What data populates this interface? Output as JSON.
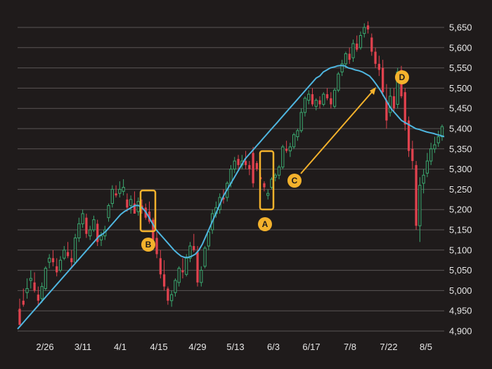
{
  "chart_data": {
    "type": "candlestick",
    "title": "",
    "xlabel": "",
    "ylabel": "",
    "ylim": [
      4900,
      5650
    ],
    "y_ticks": [
      "4,900",
      "4,950",
      "5,000",
      "5,050",
      "5,100",
      "5,150",
      "5,200",
      "5,250",
      "5,300",
      "5,350",
      "5,400",
      "5,450",
      "5,500",
      "5,550",
      "5,600",
      "5,650"
    ],
    "x_tick_labels": [
      "2/26",
      "3/11",
      "4/1",
      "4/15",
      "4/29",
      "5/13",
      "6/3",
      "6/17",
      "7/8",
      "7/22",
      "8/5"
    ],
    "grid": "horizontal",
    "colors": {
      "up": "#3ba870",
      "down": "#e0424e",
      "ma": "#4fb6e0",
      "annotation": "#f4b22c",
      "grid": "#5a5555",
      "background": "#1f1b1b"
    },
    "series": [
      {
        "values": [
          [
            4955,
            4980,
            4945,
            4915
          ],
          [
            4975,
            5005,
            4960,
            4965
          ],
          [
            4995,
            5030,
            4980,
            5005
          ],
          [
            5025,
            5050,
            5005,
            5030
          ],
          [
            5020,
            5045,
            4995,
            5000
          ],
          [
            4990,
            5010,
            4965,
            4975
          ],
          [
            4980,
            5020,
            4970,
            5010
          ],
          [
            5005,
            5060,
            5000,
            5055
          ],
          [
            5070,
            5090,
            5055,
            5080
          ],
          [
            5080,
            5100,
            5060,
            5070
          ],
          [
            5060,
            5080,
            5035,
            5045
          ],
          [
            5050,
            5085,
            5045,
            5075
          ],
          [
            5080,
            5110,
            5075,
            5100
          ],
          [
            5095,
            5120,
            5080,
            5085
          ],
          [
            5080,
            5100,
            5055,
            5070
          ],
          [
            5070,
            5140,
            5065,
            5130
          ],
          [
            5130,
            5180,
            5120,
            5165
          ],
          [
            5165,
            5200,
            5155,
            5190
          ],
          [
            5180,
            5190,
            5130,
            5140
          ],
          [
            5135,
            5160,
            5125,
            5150
          ],
          [
            5150,
            5185,
            5145,
            5175
          ],
          [
            5165,
            5175,
            5110,
            5120
          ],
          [
            5125,
            5145,
            5110,
            5135
          ],
          [
            5135,
            5160,
            5125,
            5150
          ],
          [
            5180,
            5215,
            5170,
            5210
          ],
          [
            5215,
            5260,
            5205,
            5250
          ],
          [
            5240,
            5260,
            5230,
            5235
          ],
          [
            5240,
            5270,
            5230,
            5250
          ],
          [
            5245,
            5275,
            5235,
            5255
          ],
          [
            5225,
            5240,
            5195,
            5205
          ],
          [
            5210,
            5235,
            5190,
            5225
          ],
          [
            5215,
            5245,
            5200,
            5190
          ],
          [
            5195,
            5230,
            5185,
            5220
          ],
          [
            5210,
            5225,
            5190,
            5200
          ],
          [
            5205,
            5215,
            5175,
            5180
          ],
          [
            5195,
            5220,
            5165,
            5170
          ],
          [
            5175,
            5180,
            5115,
            5125
          ],
          [
            5130,
            5145,
            5080,
            5090
          ],
          [
            5080,
            5100,
            5030,
            5040
          ],
          [
            5040,
            5075,
            5000,
            5010
          ],
          [
            5005,
            5010,
            4965,
            4975
          ],
          [
            4975,
            5000,
            4960,
            4990
          ],
          [
            4995,
            5030,
            4985,
            5025
          ],
          [
            5020,
            5060,
            5010,
            5055
          ],
          [
            5050,
            5080,
            5030,
            5045
          ],
          [
            5040,
            5090,
            5035,
            5080
          ],
          [
            5080,
            5120,
            5070,
            5110
          ],
          [
            5110,
            5140,
            5095,
            5100
          ],
          [
            5095,
            5110,
            5010,
            5020
          ],
          [
            5020,
            5060,
            5010,
            5050
          ],
          [
            5060,
            5110,
            5055,
            5105
          ],
          [
            5110,
            5150,
            5100,
            5145
          ],
          [
            5150,
            5200,
            5140,
            5190
          ],
          [
            5190,
            5220,
            5180,
            5205
          ],
          [
            5200,
            5240,
            5190,
            5230
          ],
          [
            5230,
            5250,
            5215,
            5225
          ],
          [
            5230,
            5270,
            5220,
            5265
          ],
          [
            5265,
            5310,
            5255,
            5300
          ],
          [
            5300,
            5330,
            5290,
            5320
          ],
          [
            5325,
            5335,
            5300,
            5310
          ],
          [
            5310,
            5335,
            5300,
            5320
          ],
          [
            5320,
            5345,
            5300,
            5310
          ],
          [
            5310,
            5320,
            5285,
            5300
          ],
          [
            5340,
            5355,
            5255,
            5265
          ],
          [
            5315,
            5320,
            5295,
            5300
          ],
          [
            5280,
            5290,
            5270,
            5275
          ],
          [
            5265,
            5270,
            5245,
            5255
          ],
          [
            5235,
            5250,
            5225,
            5240
          ],
          [
            5255,
            5280,
            5250,
            5275
          ],
          [
            5280,
            5290,
            5270,
            5285
          ],
          [
            5285,
            5310,
            5275,
            5305
          ],
          [
            5305,
            5360,
            5300,
            5355
          ],
          [
            5350,
            5370,
            5340,
            5345
          ],
          [
            5345,
            5365,
            5330,
            5355
          ],
          [
            5355,
            5390,
            5350,
            5385
          ],
          [
            5380,
            5400,
            5370,
            5395
          ],
          [
            5395,
            5450,
            5390,
            5440
          ],
          [
            5440,
            5480,
            5430,
            5475
          ],
          [
            5470,
            5495,
            5460,
            5485
          ],
          [
            5485,
            5500,
            5455,
            5460
          ],
          [
            5455,
            5475,
            5445,
            5470
          ],
          [
            5470,
            5480,
            5450,
            5460
          ],
          [
            5460,
            5490,
            5455,
            5485
          ],
          [
            5485,
            5500,
            5470,
            5475
          ],
          [
            5475,
            5490,
            5450,
            5460
          ],
          [
            5455,
            5500,
            5450,
            5495
          ],
          [
            5495,
            5540,
            5490,
            5535
          ],
          [
            5540,
            5570,
            5530,
            5560
          ],
          [
            5560,
            5590,
            5550,
            5585
          ],
          [
            5585,
            5600,
            5560,
            5570
          ],
          [
            5575,
            5620,
            5565,
            5610
          ],
          [
            5610,
            5630,
            5590,
            5595
          ],
          [
            5600,
            5640,
            5595,
            5630
          ],
          [
            5635,
            5660,
            5625,
            5650
          ],
          [
            5655,
            5665,
            5635,
            5645
          ],
          [
            5625,
            5635,
            5580,
            5590
          ],
          [
            5590,
            5600,
            5550,
            5560
          ],
          [
            5560,
            5580,
            5530,
            5545
          ],
          [
            5550,
            5570,
            5480,
            5490
          ],
          [
            5470,
            5510,
            5400,
            5420
          ],
          [
            5440,
            5500,
            5430,
            5480
          ],
          [
            5480,
            5500,
            5440,
            5450
          ],
          [
            5460,
            5550,
            5450,
            5540
          ],
          [
            5545,
            5555,
            5475,
            5480
          ],
          [
            5490,
            5500,
            5395,
            5410
          ],
          [
            5420,
            5430,
            5330,
            5345
          ],
          [
            5350,
            5370,
            5300,
            5320
          ],
          [
            5310,
            5320,
            5150,
            5160
          ],
          [
            5160,
            5280,
            5120,
            5260
          ],
          [
            5265,
            5300,
            5240,
            5285
          ],
          [
            5290,
            5340,
            5280,
            5320
          ],
          [
            5320,
            5365,
            5310,
            5350
          ],
          [
            5350,
            5380,
            5340,
            5360
          ],
          [
            5365,
            5395,
            5355,
            5380
          ],
          [
            5380,
            5410,
            5370,
            5405
          ]
        ]
      },
      {
        "values": [
          4905,
          4915,
          4925,
          4935,
          4945,
          4955,
          4965,
          4975,
          4985,
          4995,
          5005,
          5015,
          5025,
          5035,
          5045,
          5055,
          5065,
          5075,
          5085,
          5095,
          5105,
          5115,
          5125,
          5135,
          5140,
          5148,
          5158,
          5168,
          5178,
          5188,
          5195,
          5200,
          5205,
          5210,
          5210,
          5205,
          5195,
          5180,
          5165,
          5150,
          5140,
          5130,
          5120,
          5110,
          5100,
          5092,
          5085,
          5082,
          5082,
          5085,
          5090,
          5100,
          5115,
          5135,
          5155,
          5175,
          5195,
          5215,
          5235,
          5250,
          5265,
          5280,
          5295,
          5310,
          5325,
          5335,
          5345,
          5355,
          5365,
          5375,
          5385,
          5395,
          5405,
          5415,
          5425,
          5435,
          5445,
          5455,
          5465,
          5475,
          5485,
          5495,
          5505,
          5515,
          5525,
          5530,
          5540,
          5545,
          5550,
          5552,
          5555,
          5556,
          5555,
          5550,
          5548,
          5545,
          5543,
          5540,
          5535,
          5530,
          5520,
          5508,
          5495,
          5480,
          5465,
          5450,
          5440,
          5430,
          5420,
          5415,
          5410,
          5405,
          5400,
          5398,
          5395,
          5392,
          5390,
          5388,
          5385,
          5383,
          5380
        ]
      }
    ],
    "annotations": [
      "A",
      "B",
      "C",
      "D"
    ]
  }
}
